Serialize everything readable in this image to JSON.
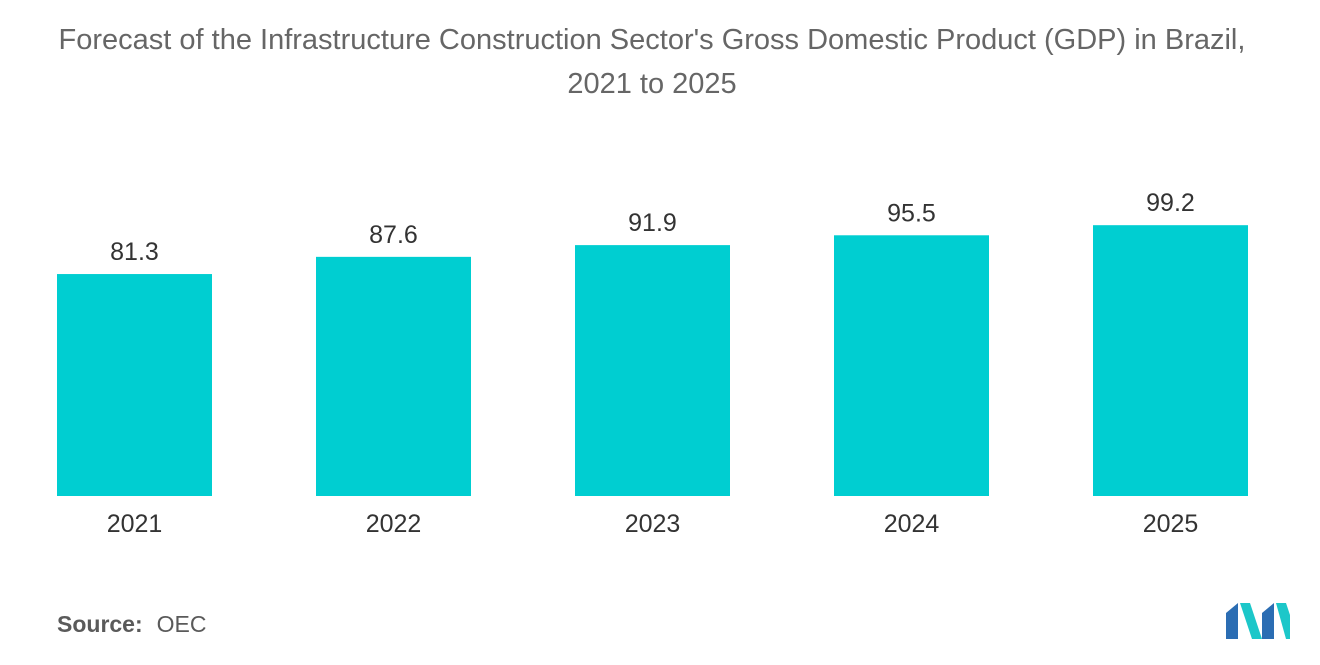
{
  "chart_data": {
    "type": "bar",
    "title": "Forecast of the Infrastructure Construction Sector's Gross Domestic Product (GDP) in Brazil,",
    "subtitle": "2021 to 2025",
    "categories": [
      "2021",
      "2022",
      "2023",
      "2024",
      "2025"
    ],
    "values": [
      81.3,
      87.6,
      91.9,
      95.5,
      99.2
    ],
    "value_labels": [
      "81.3",
      "87.6",
      "91.9",
      "95.5",
      "99.2"
    ],
    "xlabel": "",
    "ylabel": "",
    "ylim": [
      0,
      100
    ],
    "grid": false,
    "legend": "none",
    "bar_color": "#00CED1"
  },
  "source": {
    "label": "Source:",
    "value": "OEC"
  },
  "logo": {
    "icon": "mordor-intelligence-logo-icon",
    "colors": [
      "#2B6DB3",
      "#1CC7C9"
    ]
  }
}
